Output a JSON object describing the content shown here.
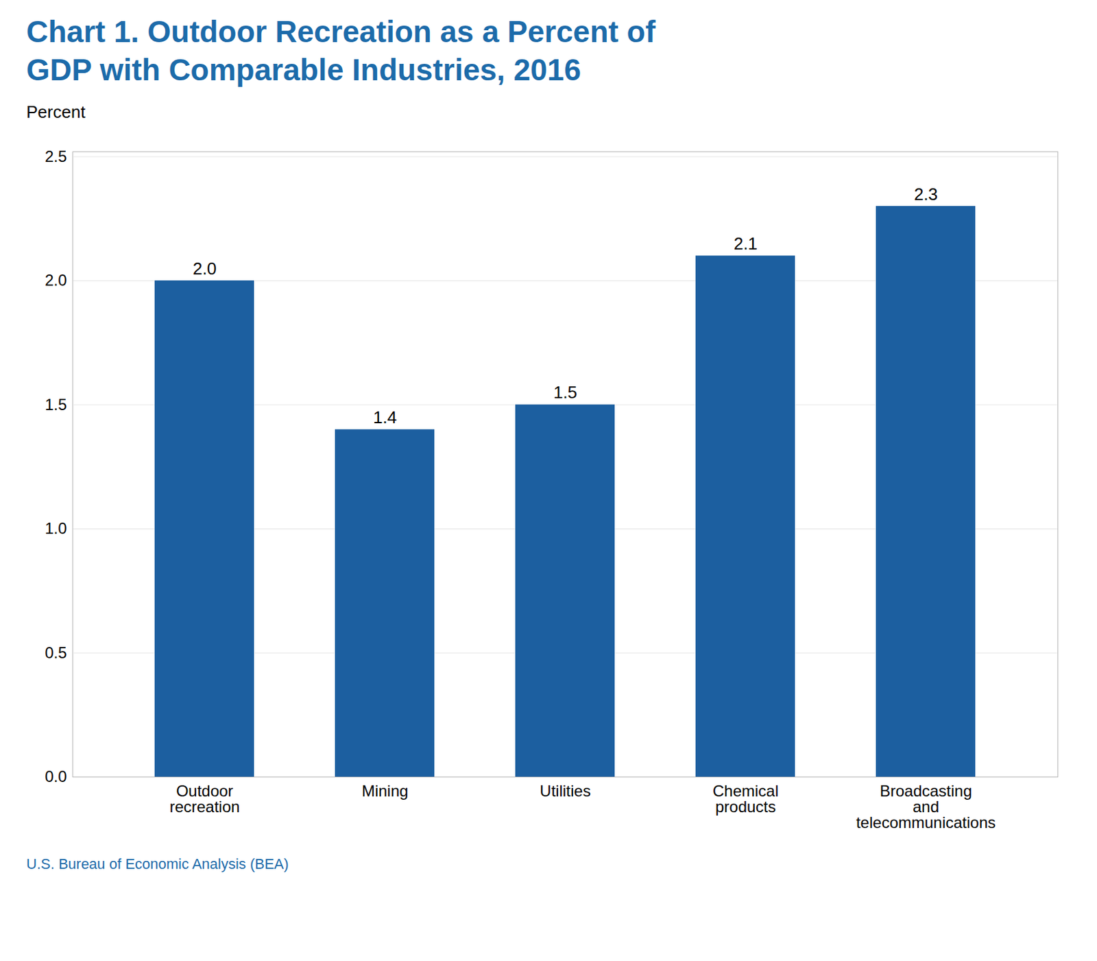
{
  "chart_data": {
    "type": "bar",
    "title": "Chart 1. Outdoor Recreation as a Percent of\nGDP with Comparable Industries, 2016",
    "ylabel": "Percent",
    "caption": "U.S. Bureau of Economic Analysis (BEA)",
    "categories": [
      "Outdoor\nrecreation",
      "Mining",
      "Utilities",
      "Chemical\nproducts",
      "Broadcasting\nand\ntelecommunications"
    ],
    "values": [
      2.0,
      1.4,
      1.5,
      2.1,
      2.3
    ],
    "value_labels": [
      "2.0",
      "1.4",
      "1.5",
      "2.1",
      "2.3"
    ],
    "data_labels": true,
    "color": "#1C5FA0",
    "ylim": [
      0,
      2.52
    ],
    "yticks": [
      {
        "value": 0,
        "label": "0.0"
      },
      0.5,
      {
        "value": 1,
        "label": "1.0"
      },
      1.5,
      {
        "value": 2,
        "label": "2.0"
      },
      2.5
    ],
    "grid": true
  }
}
